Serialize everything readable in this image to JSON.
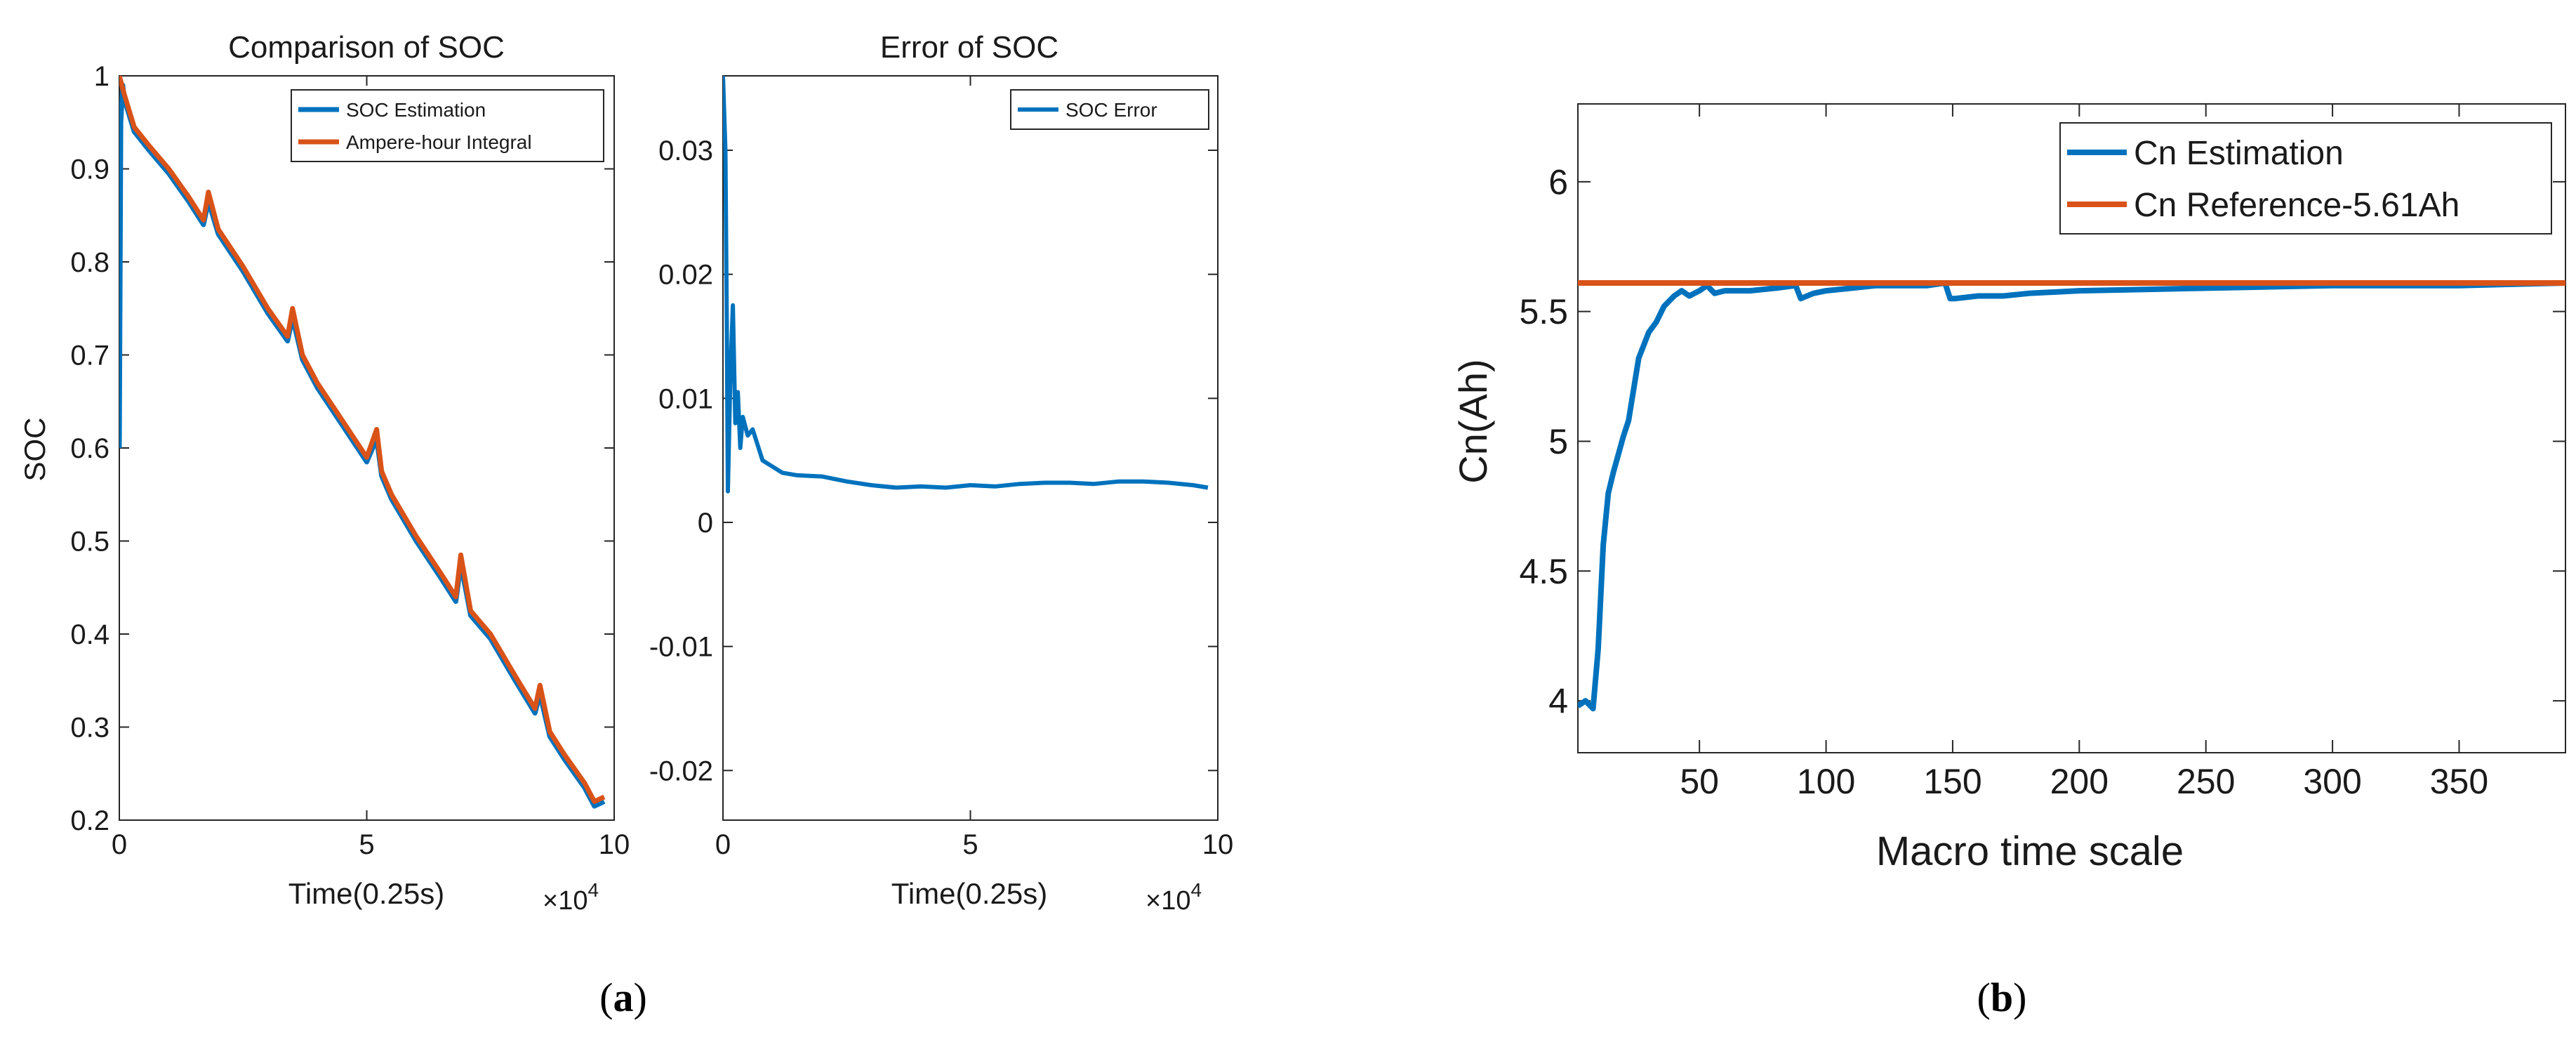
{
  "panels": [
    {
      "label_open": "(",
      "label_letter": "a",
      "label_close": ")"
    },
    {
      "label_open": "(",
      "label_letter": "b",
      "label_close": ")"
    }
  ],
  "chart_data": [
    {
      "type": "line",
      "title": "Comparison of SOC",
      "xlabel": "Time(0.25s)",
      "ylabel": "SOC",
      "x_exponent_label": "×10",
      "x_exponent_power": "4",
      "xlim": [
        0,
        10
      ],
      "ylim": [
        0.2,
        1.0
      ],
      "xticks": [
        0,
        5,
        10
      ],
      "yticks": [
        0.2,
        0.3,
        0.4,
        0.5,
        0.6,
        0.7,
        0.8,
        0.9,
        1.0
      ],
      "legend_position": "top-right",
      "series": [
        {
          "name": "SOC Estimation",
          "color": "#0072BD",
          "x": [
            0,
            0.03,
            0.07,
            0.1,
            0.3,
            0.6,
            1.0,
            1.4,
            1.7,
            1.8,
            2.0,
            2.5,
            3.0,
            3.4,
            3.5,
            3.7,
            4.0,
            4.5,
            5.0,
            5.2,
            5.3,
            5.5,
            6.0,
            6.5,
            6.8,
            6.9,
            7.1,
            7.5,
            8.0,
            8.4,
            8.5,
            8.7,
            9.0,
            9.4,
            9.6,
            9.8
          ],
          "y": [
            0.6,
            0.95,
            0.99,
            0.975,
            0.94,
            0.92,
            0.895,
            0.865,
            0.84,
            0.865,
            0.83,
            0.79,
            0.745,
            0.715,
            0.74,
            0.695,
            0.665,
            0.625,
            0.585,
            0.61,
            0.57,
            0.545,
            0.5,
            0.46,
            0.435,
            0.475,
            0.42,
            0.395,
            0.35,
            0.315,
            0.335,
            0.29,
            0.265,
            0.235,
            0.215,
            0.22
          ]
        },
        {
          "name": "Ampere-hour Integral",
          "color": "#D95319",
          "x": [
            0,
            0.1,
            0.3,
            0.6,
            1.0,
            1.4,
            1.7,
            1.8,
            2.0,
            2.5,
            3.0,
            3.4,
            3.5,
            3.7,
            4.0,
            4.5,
            5.0,
            5.2,
            5.3,
            5.5,
            6.0,
            6.5,
            6.8,
            6.9,
            7.1,
            7.5,
            8.0,
            8.4,
            8.5,
            8.7,
            9.0,
            9.4,
            9.6,
            9.8
          ],
          "y": [
            1.0,
            0.98,
            0.945,
            0.925,
            0.9,
            0.87,
            0.845,
            0.875,
            0.835,
            0.795,
            0.75,
            0.72,
            0.75,
            0.7,
            0.67,
            0.63,
            0.59,
            0.62,
            0.575,
            0.55,
            0.505,
            0.465,
            0.44,
            0.485,
            0.425,
            0.4,
            0.355,
            0.32,
            0.345,
            0.295,
            0.27,
            0.24,
            0.22,
            0.225
          ]
        }
      ]
    },
    {
      "type": "line",
      "title": "Error of SOC",
      "xlabel": "Time(0.25s)",
      "ylabel": "",
      "x_exponent_label": "×10",
      "x_exponent_power": "4",
      "xlim": [
        0,
        10
      ],
      "ylim": [
        -0.024,
        0.036
      ],
      "xticks": [
        0,
        5,
        10
      ],
      "yticks": [
        -0.02,
        -0.01,
        0,
        0.01,
        0.02,
        0.03
      ],
      "legend_position": "top-right",
      "series": [
        {
          "name": "SOC Error",
          "color": "#0072BD",
          "x": [
            0,
            0.05,
            0.08,
            0.1,
            0.15,
            0.2,
            0.25,
            0.3,
            0.35,
            0.4,
            0.5,
            0.6,
            0.8,
            1.0,
            1.2,
            1.5,
            2.0,
            2.5,
            3.0,
            3.5,
            4.0,
            4.5,
            5.0,
            5.5,
            6.0,
            6.5,
            7.0,
            7.5,
            8.0,
            8.5,
            9.0,
            9.5,
            9.8
          ],
          "y": [
            0.036,
            0.03,
            0.015,
            0.0025,
            0.012,
            0.0175,
            0.008,
            0.0105,
            0.006,
            0.0085,
            0.007,
            0.0075,
            0.005,
            0.0045,
            0.004,
            0.0038,
            0.0037,
            0.0033,
            0.003,
            0.0028,
            0.0029,
            0.0028,
            0.003,
            0.0029,
            0.0031,
            0.0032,
            0.0032,
            0.0031,
            0.0033,
            0.0033,
            0.0032,
            0.003,
            0.0028
          ]
        }
      ]
    },
    {
      "type": "line",
      "title": "",
      "xlabel": "Macro time scale",
      "ylabel": "Cn(Ah)",
      "xlim": [
        2,
        392
      ],
      "ylim": [
        3.8,
        6.3
      ],
      "xticks": [
        50,
        100,
        150,
        200,
        250,
        300,
        350
      ],
      "yticks": [
        4,
        4.5,
        5,
        5.5,
        6
      ],
      "legend_position": "top-right",
      "series": [
        {
          "name": "Cn Estimation",
          "color": "#0072BD",
          "x": [
            2,
            5,
            8,
            10,
            12,
            14,
            16,
            18,
            20,
            22,
            24,
            26,
            28,
            30,
            33,
            36,
            40,
            43,
            46,
            50,
            53,
            56,
            60,
            70,
            80,
            88,
            90,
            95,
            100,
            110,
            120,
            140,
            147,
            149,
            151,
            160,
            170,
            180,
            200,
            250,
            300,
            350,
            392
          ],
          "y": [
            3.98,
            4.0,
            3.97,
            4.2,
            4.6,
            4.8,
            4.88,
            4.95,
            5.02,
            5.08,
            5.2,
            5.32,
            5.37,
            5.42,
            5.46,
            5.52,
            5.56,
            5.58,
            5.56,
            5.58,
            5.6,
            5.57,
            5.58,
            5.58,
            5.59,
            5.6,
            5.55,
            5.57,
            5.58,
            5.59,
            5.6,
            5.6,
            5.61,
            5.55,
            5.55,
            5.56,
            5.56,
            5.57,
            5.58,
            5.59,
            5.6,
            5.6,
            5.61
          ]
        },
        {
          "name": "Cn Reference-5.61Ah",
          "color": "#D95319",
          "x": [
            2,
            392
          ],
          "y": [
            5.61,
            5.61
          ]
        }
      ]
    }
  ]
}
